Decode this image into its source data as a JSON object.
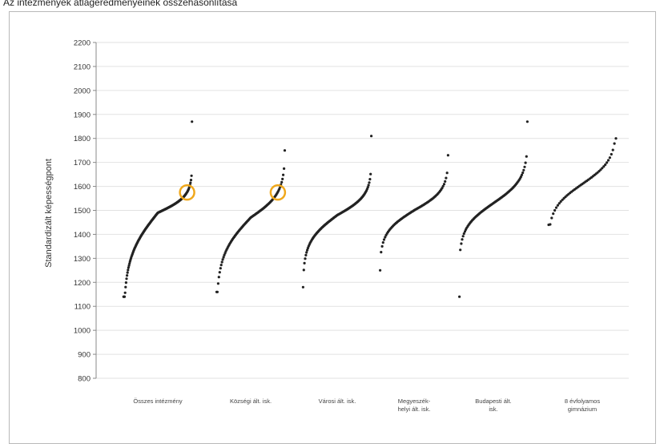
{
  "page": {
    "title": "Az intézmények átlageredményeinek összehasonlítása"
  },
  "colors": {
    "points": "#222222",
    "highlight": "#f0a81c",
    "grid": "#e2e2e2",
    "axis": "#888888"
  },
  "chart_data": {
    "type": "scatter",
    "title": "",
    "xlabel": "",
    "ylabel": "Standardizált képességpont",
    "ylim": [
      800,
      2200
    ],
    "yticks": [
      2200,
      2100,
      2000,
      1900,
      1800,
      1700,
      1600,
      1500,
      1400,
      1300,
      1200,
      1100,
      1000,
      900,
      800
    ],
    "grid": true,
    "categories": [
      "Összes intézmény",
      "Községi ált. isk.",
      "Városi ált. isk.",
      "Megyeszék-helyi ált. isk.",
      "Budapesti ált. isk.",
      "8 évfolyamos gimnázium"
    ],
    "category_labels": [
      [
        "Összes intézmény"
      ],
      [
        "Községi ált. isk."
      ],
      [
        "Városi ált. isk."
      ],
      [
        "Megyeszék-",
        "helyi ált. isk."
      ],
      [
        "Budapesti ált.",
        "isk."
      ],
      [
        "8 évfolyamos",
        "gimnázium"
      ]
    ],
    "series": [
      {
        "count": 140,
        "min": 1140,
        "q10": 1290,
        "q50": 1490,
        "q90": 1565,
        "max": 1870
      },
      {
        "count": 90,
        "min": 1160,
        "q10": 1300,
        "q50": 1470,
        "q90": 1580,
        "max": 1750
      },
      {
        "count": 100,
        "min": 1180,
        "q10": 1360,
        "q50": 1480,
        "q90": 1570,
        "max": 1810
      },
      {
        "count": 70,
        "min": 1250,
        "q10": 1400,
        "q50": 1500,
        "q90": 1590,
        "max": 1730
      },
      {
        "count": 75,
        "min": 1140,
        "q10": 1420,
        "q50": 1530,
        "q90": 1640,
        "max": 1870
      },
      {
        "count": 45,
        "min": 1440,
        "q10": 1500,
        "q50": 1610,
        "q90": 1720,
        "max": 1800
      }
    ],
    "highlights": [
      {
        "category": 0,
        "value": 1575
      },
      {
        "category": 1,
        "value": 1575
      }
    ]
  }
}
